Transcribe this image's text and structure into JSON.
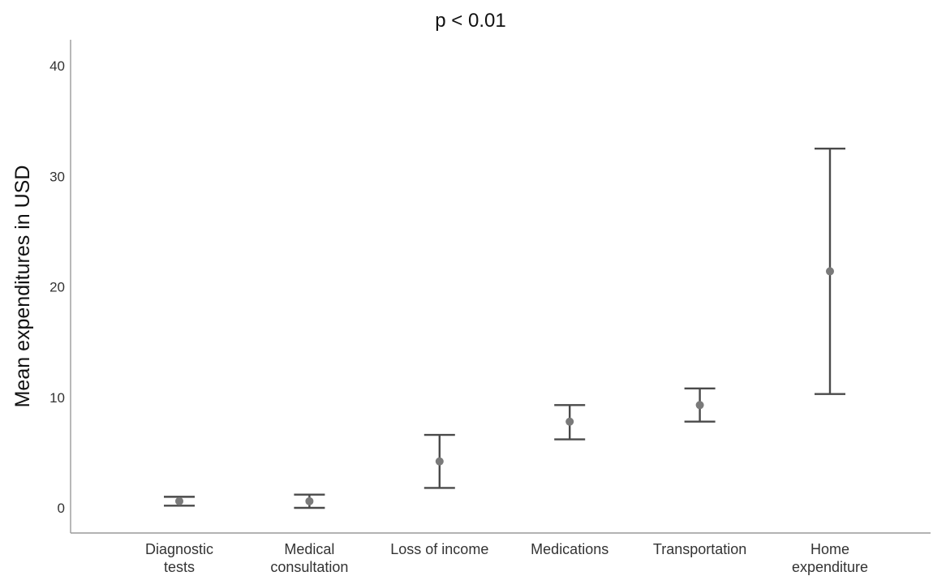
{
  "chart_data": {
    "type": "scatter",
    "title": "p < 0.01",
    "xlabel": "",
    "ylabel": "Mean expenditures in USD",
    "ylim": [
      -2.2,
      42
    ],
    "yticks": [
      0,
      10,
      20,
      30,
      40
    ],
    "grid": false,
    "legend": "none",
    "colors": {
      "point": "#7a7a7a",
      "errorbar": "#4a4a4a",
      "axis": "#9a9a9a",
      "text": "#333333"
    },
    "categories": [
      {
        "label_lines": [
          "Diagnostic",
          "tests"
        ],
        "mean": 0.6,
        "lower": 0.2,
        "upper": 1.0
      },
      {
        "label_lines": [
          "Medical",
          "consultation"
        ],
        "mean": 0.6,
        "lower": 0.0,
        "upper": 1.2
      },
      {
        "label_lines": [
          "Loss of income"
        ],
        "mean": 4.2,
        "lower": 1.8,
        "upper": 6.6
      },
      {
        "label_lines": [
          "Medications"
        ],
        "mean": 7.8,
        "lower": 6.2,
        "upper": 9.3
      },
      {
        "label_lines": [
          "Transportation"
        ],
        "mean": 9.3,
        "lower": 7.8,
        "upper": 10.8
      },
      {
        "label_lines": [
          "Home",
          "expenditure"
        ],
        "mean": 21.4,
        "lower": 10.3,
        "upper": 32.5
      }
    ]
  }
}
